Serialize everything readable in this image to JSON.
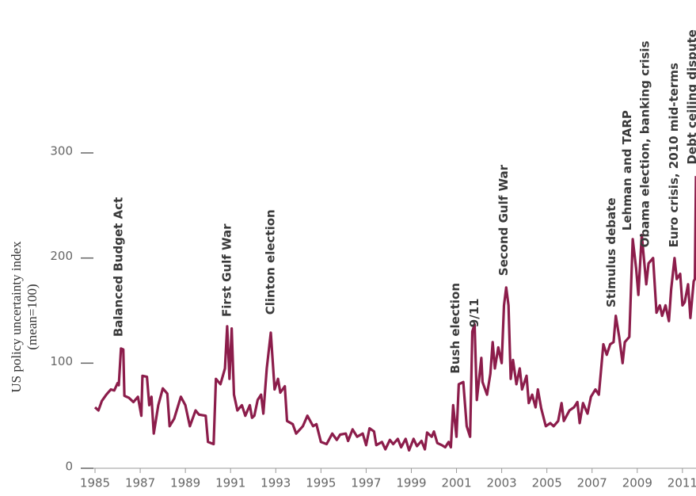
{
  "chart_data": {
    "type": "line",
    "ylabel": [
      "US policy uncertainty index",
      "(mean=100)"
    ],
    "x": [
      1985.0,
      1985.15,
      1985.3,
      1985.5,
      1985.7,
      1985.85,
      1986.0,
      1986.05,
      1986.15,
      1986.25,
      1986.3,
      1986.5,
      1986.7,
      1986.9,
      1987.05,
      1987.1,
      1987.3,
      1987.4,
      1987.5,
      1987.6,
      1987.8,
      1988.0,
      1988.2,
      1988.3,
      1988.5,
      1988.8,
      1989.0,
      1989.2,
      1989.45,
      1989.6,
      1989.9,
      1990.0,
      1990.25,
      1990.35,
      1990.55,
      1990.75,
      1990.85,
      1990.95,
      1991.05,
      1991.15,
      1991.3,
      1991.5,
      1991.65,
      1991.85,
      1991.95,
      1992.05,
      1992.2,
      1992.35,
      1992.45,
      1992.6,
      1992.78,
      1992.95,
      1993.1,
      1993.2,
      1993.4,
      1993.5,
      1993.75,
      1993.9,
      1994.2,
      1994.4,
      1994.65,
      1994.8,
      1995.0,
      1995.25,
      1995.5,
      1995.7,
      1995.85,
      1996.1,
      1996.2,
      1996.4,
      1996.6,
      1996.85,
      1997.0,
      1997.15,
      1997.35,
      1997.45,
      1997.7,
      1997.85,
      1998.05,
      1998.2,
      1998.4,
      1998.55,
      1998.75,
      1998.9,
      1999.1,
      1999.25,
      1999.45,
      1999.6,
      1999.7,
      1999.9,
      2000.0,
      2000.15,
      2000.35,
      2000.5,
      2000.65,
      2000.75,
      2000.85,
      2001.0,
      2001.1,
      2001.3,
      2001.45,
      2001.6,
      2001.7,
      2001.8,
      2001.9,
      2002.1,
      2002.15,
      2002.35,
      2002.5,
      2002.6,
      2002.7,
      2002.85,
      2003.0,
      2003.1,
      2003.2,
      2003.3,
      2003.4,
      2003.5,
      2003.65,
      2003.8,
      2003.9,
      2004.1,
      2004.2,
      2004.35,
      2004.5,
      2004.6,
      2004.75,
      2004.95,
      2005.15,
      2005.3,
      2005.5,
      2005.65,
      2005.75,
      2006.0,
      2006.2,
      2006.35,
      2006.45,
      2006.6,
      2006.8,
      2006.95,
      2007.15,
      2007.3,
      2007.5,
      2007.65,
      2007.8,
      2007.95,
      2008.05,
      2008.2,
      2008.35,
      2008.45,
      2008.65,
      2008.8,
      2008.95,
      2009.05,
      2009.2,
      2009.4,
      2009.5,
      2009.7,
      2009.85,
      2010.0,
      2010.1,
      2010.25,
      2010.4,
      2010.5,
      2010.65,
      2010.75,
      2010.9,
      2011.0,
      2011.1,
      2011.25,
      2011.35,
      2011.5,
      2011.55,
      2011.6
    ],
    "series": [
      {
        "name": "US policy uncertainty index",
        "color": "#8c1d4b",
        "values": [
          58,
          55,
          64,
          70,
          75,
          74,
          81,
          79,
          114,
          113,
          69,
          67,
          63,
          68,
          50,
          88,
          87,
          60,
          68,
          33,
          60,
          76,
          71,
          40,
          47,
          68,
          60,
          40,
          55,
          51,
          50,
          25,
          23,
          85,
          80,
          95,
          135,
          85,
          133,
          70,
          55,
          60,
          50,
          60,
          48,
          50,
          65,
          70,
          52,
          95,
          129,
          75,
          85,
          72,
          78,
          45,
          42,
          33,
          40,
          50,
          40,
          42,
          25,
          23,
          33,
          27,
          32,
          33,
          26,
          37,
          30,
          33,
          22,
          38,
          35,
          22,
          25,
          18,
          27,
          23,
          28,
          20,
          28,
          17,
          28,
          21,
          26,
          18,
          34,
          30,
          35,
          24,
          22,
          20,
          25,
          20,
          60,
          30,
          80,
          82,
          40,
          30,
          130,
          137,
          65,
          105,
          82,
          70,
          90,
          120,
          95,
          115,
          100,
          155,
          172,
          155,
          85,
          103,
          80,
          95,
          75,
          88,
          62,
          70,
          58,
          75,
          57,
          40,
          43,
          40,
          45,
          62,
          45,
          55,
          58,
          63,
          43,
          62,
          52,
          68,
          75,
          70,
          118,
          108,
          118,
          120,
          145,
          125,
          100,
          120,
          125,
          218,
          190,
          165,
          222,
          175,
          195,
          200,
          148,
          155,
          145,
          155,
          140,
          170,
          200,
          180,
          185,
          155,
          158,
          175,
          143,
          178,
          180,
          278
        ]
      }
    ],
    "xlim": [
      1985,
      2011.6
    ],
    "ylim": [
      0,
      300
    ],
    "xticks": [
      1985,
      1987,
      1989,
      1991,
      1993,
      1995,
      1997,
      1999,
      2001,
      2003,
      2005,
      2007,
      2009,
      2011
    ],
    "yticks": [
      0,
      100,
      200,
      300
    ],
    "annotations": [
      {
        "text": "Balanced Budget Act",
        "x": 1986.05,
        "y": 125
      },
      {
        "text": "First Gulf War",
        "x": 1990.85,
        "y": 144
      },
      {
        "text": "Clinton election",
        "x": 1992.78,
        "y": 146
      },
      {
        "text": "Bush election",
        "x": 2000.97,
        "y": 90
      },
      {
        "text": "9/11",
        "x": 2001.8,
        "y": 134
      },
      {
        "text": "Second Gulf War",
        "x": 2003.1,
        "y": 183
      },
      {
        "text": "Stimulus debate",
        "x": 2007.87,
        "y": 153
      },
      {
        "text": "Lehman and TARP",
        "x": 2008.57,
        "y": 226
      },
      {
        "text": "Obama election, banking crisis",
        "x": 2009.35,
        "y": 210
      },
      {
        "text": "Euro crisis, 2010 mid-terms",
        "x": 2010.64,
        "y": 210
      },
      {
        "text": "Debt ceiling dispute",
        "x": 2011.45,
        "y": 289
      }
    ]
  }
}
